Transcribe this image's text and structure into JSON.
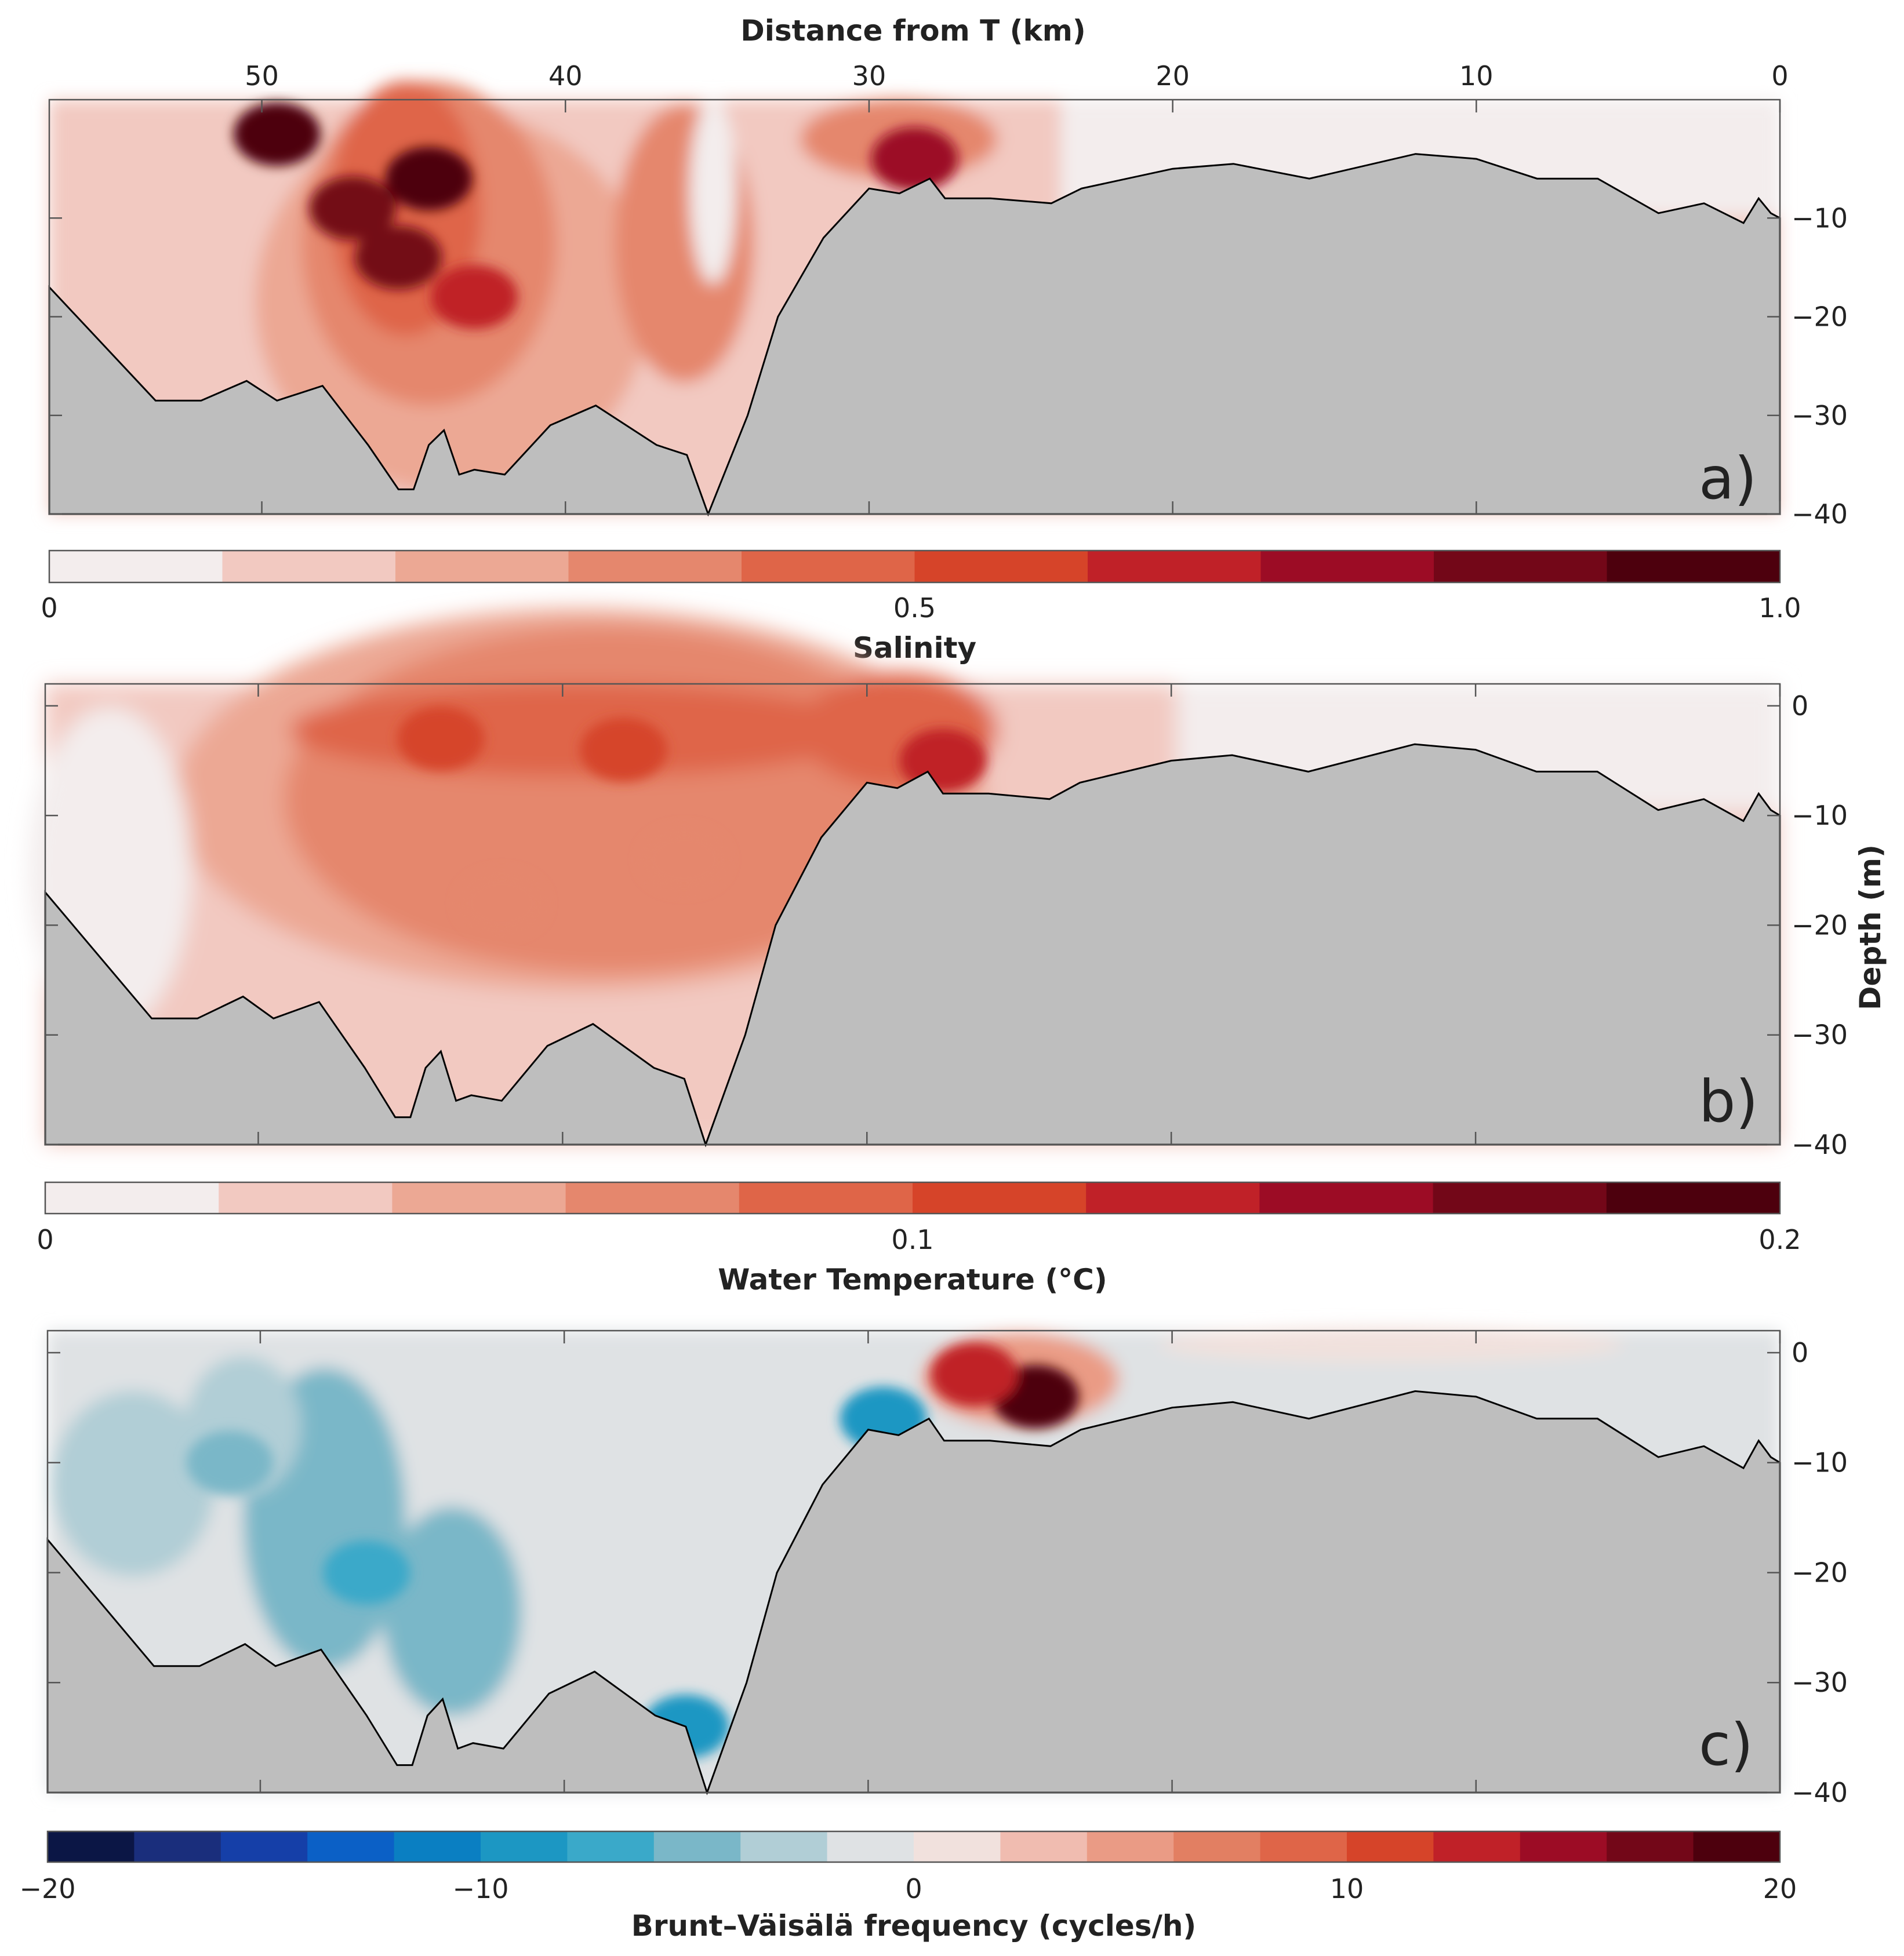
{
  "figure": {
    "top_axis_title": "Distance from T (km)",
    "right_axis_title": "Depth (m)",
    "x_ticks": [
      50,
      40,
      30,
      20,
      10,
      0
    ],
    "x_tick_labels": [
      "50",
      "40",
      "30",
      "20",
      "10",
      "0"
    ],
    "depth_tick_labels": [
      "0",
      "−10",
      "−20",
      "−30",
      "−40"
    ],
    "depth_ticks": [
      0,
      -10,
      -20,
      -30,
      -40
    ]
  },
  "colors": {
    "seabed": "#bebebe",
    "seabed_outline": "#000000",
    "reds": [
      "#f3eded",
      "#f2c9c1",
      "#eca894",
      "#e5876d",
      "#df6548",
      "#d64429",
      "#c02128",
      "#9c0c25",
      "#730718",
      "#4d000d"
    ],
    "diverging": [
      "#0b1645",
      "#1a2e7c",
      "#153fa8",
      "#0b60c6",
      "#0a7fc2",
      "#1c97c3",
      "#3aa9c9",
      "#7ab7c8",
      "#b1ced6",
      "#dfe2e4",
      "#f1e1dd",
      "#f0bcb0",
      "#ea9b85",
      "#e27f62",
      "#df6548",
      "#d64429",
      "#c02128",
      "#9c0c25",
      "#730718",
      "#4d000d"
    ]
  },
  "chart_data": [
    {
      "panel": "a)",
      "type": "heatmap",
      "title": "",
      "xlabel": "Distance from T (km)",
      "ylabel": "Depth (m)",
      "xlim": [
        57,
        0
      ],
      "ylim": [
        -40,
        2
      ],
      "colorbar_label": "Salinity",
      "colorbar_min": 0,
      "colorbar_max": 1.0,
      "colorbar_levels": 10,
      "colorbar_ticks": [
        0,
        0.5,
        1.0
      ],
      "colorbar_tick_labels": [
        "0",
        "0.5",
        "1.0"
      ],
      "colormap": "reds",
      "hotspots": [
        {
          "x": 49.5,
          "y": -1.5,
          "value": 1.0
        },
        {
          "x": 44.5,
          "y": -6,
          "value": 1.0
        },
        {
          "x": 45.5,
          "y": -14,
          "value": 0.85
        },
        {
          "x": 47,
          "y": -9,
          "value": 0.85
        },
        {
          "x": 43,
          "y": -18,
          "value": 0.65
        },
        {
          "x": 28.5,
          "y": -4,
          "value": 0.8
        }
      ],
      "bathymetry": {
        "distance_km": [
          57,
          53.5,
          52,
          50.5,
          49.5,
          48,
          46.5,
          45.5,
          45,
          44.5,
          44,
          43.5,
          43,
          42,
          40.5,
          39,
          37,
          36,
          35.3,
          34,
          33,
          31.5,
          30,
          29,
          28,
          27.5,
          26,
          24,
          23,
          20,
          18,
          15.5,
          12,
          10,
          8,
          6,
          4,
          2.5,
          1.2,
          0.7,
          0.3,
          0
        ],
        "depth_m": [
          -17,
          -28.5,
          -28.5,
          -26.5,
          -28.5,
          -27,
          -33,
          -37.5,
          -37.5,
          -33,
          -31.5,
          -36,
          -35.5,
          -36,
          -31,
          -29,
          -33,
          -34,
          -40,
          -30,
          -20,
          -12,
          -7,
          -7.5,
          -6,
          -8,
          -8,
          -8.5,
          -7,
          -5,
          -4.5,
          -6,
          -3.5,
          -4,
          -6,
          -6,
          -9.5,
          -8.5,
          -10.5,
          -8,
          -9.5,
          -10
        ]
      }
    },
    {
      "panel": "b)",
      "type": "heatmap",
      "title": "",
      "xlabel": "Distance from T (km)",
      "ylabel": "Depth (m)",
      "xlim": [
        57,
        0
      ],
      "ylim": [
        -40,
        2
      ],
      "colorbar_label": "Water Temperature (°C)",
      "colorbar_min": 0,
      "colorbar_max": 0.2,
      "colorbar_levels": 10,
      "colorbar_ticks": [
        0,
        0.1,
        0.2
      ],
      "colorbar_tick_labels": [
        "0",
        "0.1",
        "0.2"
      ],
      "colormap": "reds",
      "hotspots": [
        {
          "x": 44,
          "y": -3,
          "value": 0.11
        },
        {
          "x": 38,
          "y": -4,
          "value": 0.105
        },
        {
          "x": 27.5,
          "y": -5,
          "value": 0.13
        },
        {
          "x": 42,
          "y": -18,
          "value": 0.07
        },
        {
          "x": 36,
          "y": -14,
          "value": 0.08
        }
      ],
      "bathymetry": "same_as_panel_a"
    },
    {
      "panel": "c)",
      "type": "heatmap",
      "title": "",
      "xlabel": "Distance from T (km)",
      "ylabel": "Depth (m)",
      "xlim": [
        57,
        0
      ],
      "ylim": [
        -40,
        2
      ],
      "colorbar_label": "Brunt–Väisälä frequency (cycles/h)",
      "colorbar_min": -20,
      "colorbar_max": 20,
      "colorbar_levels": 20,
      "colorbar_ticks": [
        -20,
        -10,
        0,
        10,
        20
      ],
      "colorbar_tick_labels": [
        "−20",
        "−10",
        "0",
        "10",
        "20"
      ],
      "colormap": "diverging",
      "hotspots": [
        {
          "x": 24.5,
          "y": -4,
          "value": 20
        },
        {
          "x": 26.5,
          "y": -2,
          "value": 13
        },
        {
          "x": 29.5,
          "y": -6,
          "value": -9
        },
        {
          "x": 46.5,
          "y": -20,
          "value": -7
        },
        {
          "x": 51,
          "y": -10,
          "value": -5
        },
        {
          "x": 36,
          "y": -34,
          "value": -8
        }
      ],
      "bathymetry": "same_as_panel_a"
    }
  ]
}
